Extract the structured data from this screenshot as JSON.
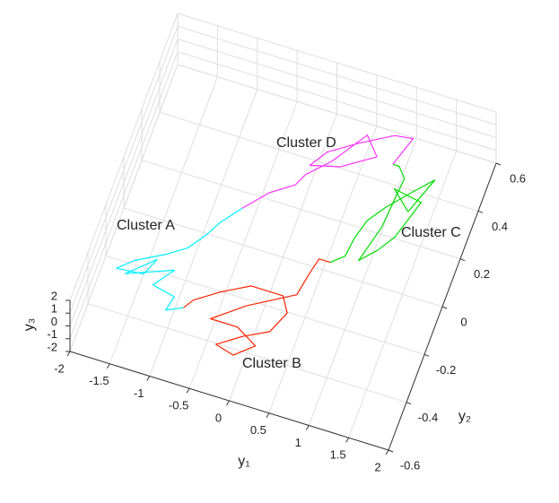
{
  "chart_data": {
    "type": "line3d",
    "xlabel": "y₁",
    "ylabel": "y₂",
    "zlabel": "y₃",
    "xlim": [
      -2,
      2
    ],
    "ylim": [
      -0.6,
      0.6
    ],
    "zlim": [
      -2,
      2
    ],
    "xticks": [
      -2,
      -1.5,
      -1,
      -0.5,
      0,
      0.5,
      1,
      1.5,
      2
    ],
    "yticks": [
      -0.6,
      -0.4,
      -0.2,
      0,
      0.2,
      0.4,
      0.6
    ],
    "zticks": [
      -2,
      -1,
      0,
      1,
      2
    ],
    "grid": true,
    "series": [
      {
        "name": "Cluster A",
        "color": "#00efff",
        "x": [
          -0.56,
          -0.75,
          -0.85,
          -1.0,
          -1.22,
          -1.55,
          -1.72,
          -1.39,
          -1.3,
          -1.6,
          -1.06,
          -1.24,
          -0.95,
          -0.99,
          -0.8
        ],
        "y": [
          0.04,
          -0.04,
          -0.1,
          -0.17,
          -0.22,
          -0.28,
          -0.33,
          -0.32,
          -0.25,
          -0.34,
          -0.27,
          -0.35,
          -0.37,
          -0.43,
          -0.4
        ]
      },
      {
        "name": "Cluster B",
        "color": "#ff2200",
        "x": [
          -0.8,
          -0.72,
          -0.46,
          -0.13,
          0.27,
          0.39,
          0.27,
          -0.02,
          -0.28,
          -0.04,
          0.17,
          -0.11,
          -0.45,
          -0.1,
          0.42,
          0.47,
          0.52,
          0.66
        ],
        "y": [
          -0.4,
          -0.36,
          -0.3,
          -0.24,
          -0.24,
          -0.3,
          -0.39,
          -0.44,
          -0.5,
          -0.52,
          -0.46,
          -0.41,
          -0.41,
          -0.32,
          -0.22,
          -0.13,
          -0.06,
          -0.06
        ]
      },
      {
        "name": "Cluster C",
        "color": "#00dd00",
        "x": [
          0.66,
          0.8,
          0.83,
          0.9,
          1.05,
          1.29,
          1.49,
          1.32,
          1.07,
          1.43,
          1.28,
          1.14,
          0.97,
          1.09,
          1.14,
          1.03,
          0.95
        ],
        "y": [
          -0.06,
          -0.02,
          0.06,
          0.14,
          0.21,
          0.3,
          0.37,
          0.22,
          0.29,
          0.27,
          0.11,
          0.04,
          -0.02,
          0.13,
          0.34,
          0.38,
          0.38
        ]
      },
      {
        "name": "Cluster D",
        "color": "#ff33ff",
        "x": [
          0.95,
          1.07,
          0.85,
          0.48,
          0.16,
          0.02,
          0.37,
          0.74,
          0.54,
          0.25,
          0.01,
          -0.06,
          -0.32,
          -0.56
        ],
        "y": [
          0.38,
          0.5,
          0.49,
          0.42,
          0.35,
          0.28,
          0.31,
          0.39,
          0.46,
          0.32,
          0.24,
          0.19,
          0.13,
          0.04
        ]
      }
    ]
  }
}
